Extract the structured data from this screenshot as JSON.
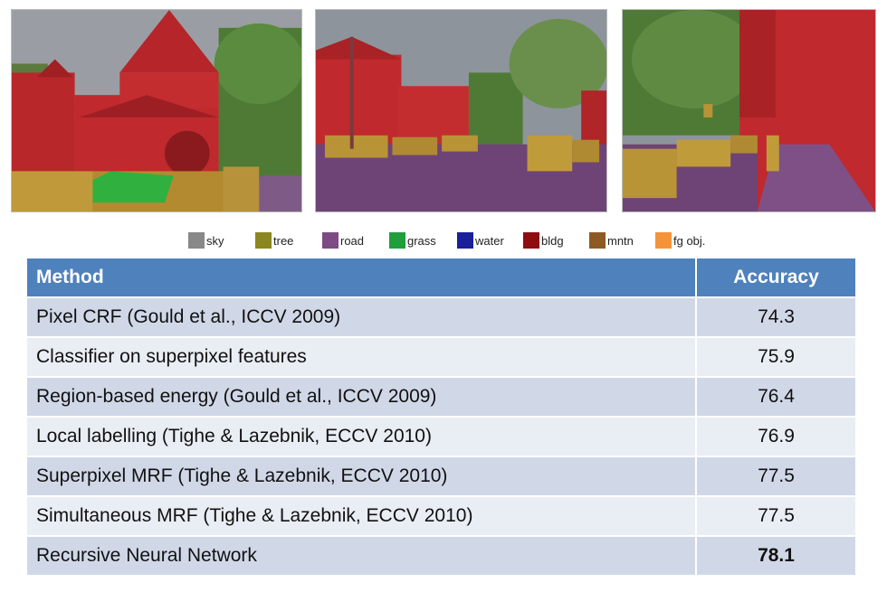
{
  "legend": [
    {
      "label": "sky",
      "color": "#888888"
    },
    {
      "label": "tree",
      "color": "#8a8620"
    },
    {
      "label": "road",
      "color": "#7d4a84"
    },
    {
      "label": "grass",
      "color": "#1f9e3a"
    },
    {
      "label": "water",
      "color": "#1a1f9a"
    },
    {
      "label": "bldg",
      "color": "#8e0d10"
    },
    {
      "label": "mntn",
      "color": "#8c5a22"
    },
    {
      "label": "fg obj.",
      "color": "#f5933b"
    }
  ],
  "table": {
    "headers": {
      "method": "Method",
      "accuracy": "Accuracy"
    },
    "rows": [
      {
        "method": "Pixel CRF (Gould et al., ICCV 2009)",
        "accuracy": "74.3"
      },
      {
        "method": "Classifier on superpixel features",
        "accuracy": "75.9"
      },
      {
        "method": "Region-based energy (Gould et al., ICCV 2009)",
        "accuracy": "76.4"
      },
      {
        "method": "Local labelling (Tighe & Lazebnik, ECCV 2010)",
        "accuracy": "76.9"
      },
      {
        "method": "Superpixel MRF (Tighe & Lazebnik, ECCV 2010)",
        "accuracy": "77.5"
      },
      {
        "method": "Simultaneous MRF (Tighe & Lazebnik, ECCV 2010)",
        "accuracy": "77.5"
      },
      {
        "method": "Recursive Neural Network",
        "accuracy": "78.1"
      }
    ]
  }
}
